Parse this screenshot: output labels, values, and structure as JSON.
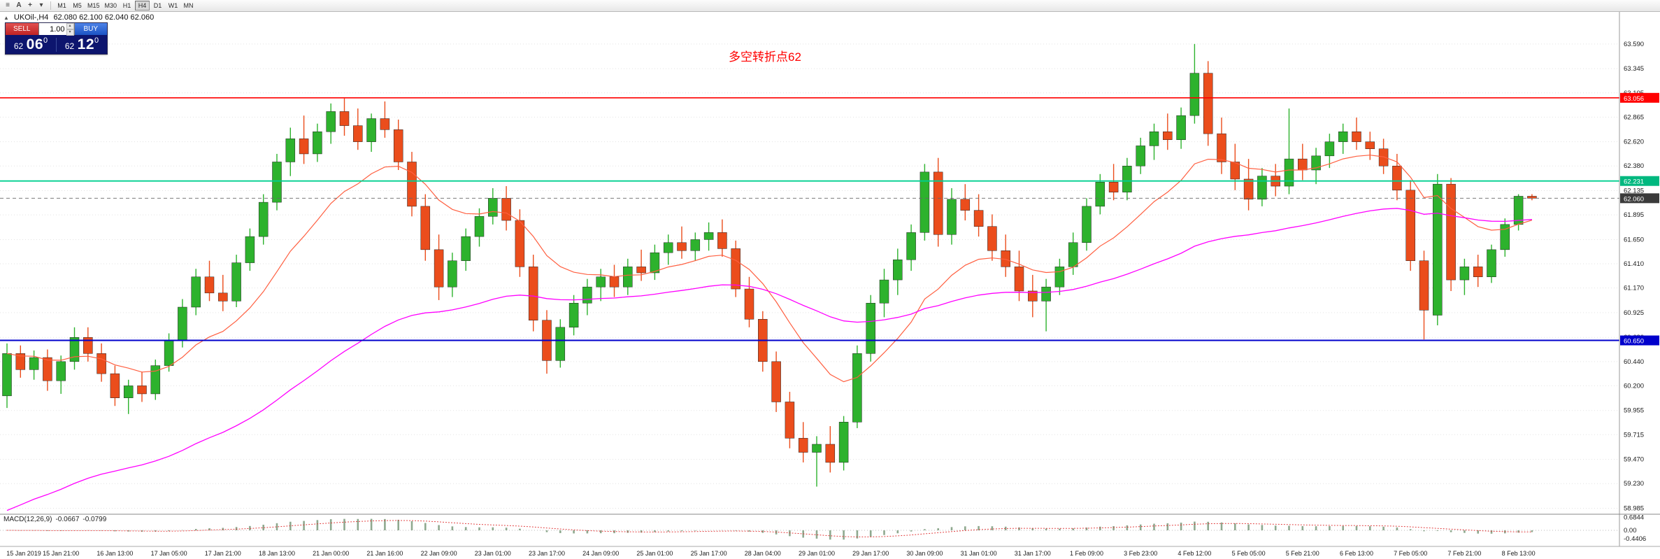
{
  "colors": {
    "up": "#2db22d",
    "down": "#eb4d1c",
    "candle_outline": "#222222",
    "ma_fast": "#ff5f40",
    "ma_slow": "#ff00ff",
    "hist": "#8fa98f",
    "signal": "#e03030",
    "grid": "#e3e3e3",
    "axis_border": "#999999",
    "annotation": "#ff0000"
  },
  "toolbar": {
    "icons": [
      {
        "name": "menu-icon",
        "glyph": "≡"
      },
      {
        "name": "text-tool-icon",
        "glyph": "A"
      },
      {
        "name": "crosshair-tool-icon",
        "glyph": "+"
      },
      {
        "name": "tools-dropdown-icon",
        "glyph": "▾"
      }
    ],
    "timeframes": [
      "M1",
      "M5",
      "M15",
      "M30",
      "H1",
      "H4",
      "D1",
      "W1",
      "MN"
    ],
    "active_timeframe": "H4"
  },
  "chart_header": {
    "toggle_glyph": "▲",
    "symbol": "UKOil-,H4",
    "ohlc": "62.080 62.100 62.040 62.060"
  },
  "trade_panel": {
    "sell_label": "SELL",
    "buy_label": "BUY",
    "lot_value": "1.00",
    "spin_up": "▴",
    "spin_down": "▾",
    "sell_price": {
      "int": "62",
      "pips": "06",
      "frac": "0"
    },
    "buy_price": {
      "int": "62",
      "pips": "12",
      "frac": "0"
    }
  },
  "annotation": {
    "text": "多空转折点62"
  },
  "macd": {
    "name": "MACD(12,26,9)",
    "value_main": "-0.0667",
    "value_signal": "-0.0799",
    "axis": [
      "0.6844",
      "0.00",
      "-0.4406"
    ]
  },
  "chart_data": {
    "type": "candlestick",
    "symbol": "UKOil-",
    "timeframe": "H4",
    "y_range": {
      "max": 63.7,
      "min": 58.94
    },
    "y_ticks": [
      63.59,
      63.345,
      63.105,
      62.865,
      62.62,
      62.38,
      62.135,
      61.895,
      61.65,
      61.41,
      61.17,
      60.925,
      60.68,
      60.44,
      60.2,
      59.955,
      59.715,
      59.47,
      59.23,
      58.985
    ],
    "x_labels": [
      "15 Jan 2019",
      "15 Jan 21:00",
      "16 Jan 13:00",
      "17 Jan 05:00",
      "17 Jan 21:00",
      "18 Jan 13:00",
      "21 Jan 00:00",
      "21 Jan 16:00",
      "22 Jan 09:00",
      "23 Jan 01:00",
      "23 Jan 17:00",
      "24 Jan 09:00",
      "25 Jan 01:00",
      "25 Jan 17:00",
      "28 Jan 04:00",
      "29 Jan 01:00",
      "29 Jan 17:00",
      "30 Jan 09:00",
      "31 Jan 01:00",
      "31 Jan 17:00",
      "1 Feb 09:00",
      "3 Feb 23:00",
      "4 Feb 12:00",
      "5 Feb 05:00",
      "5 Feb 21:00",
      "6 Feb 13:00",
      "7 Feb 05:00",
      "7 Feb 21:00",
      "8 Feb 13:00"
    ],
    "label_every": 4,
    "candles": [
      [
        60.1,
        60.62,
        59.98,
        60.52
      ],
      [
        60.52,
        60.6,
        60.28,
        60.36
      ],
      [
        60.36,
        60.55,
        60.26,
        60.48
      ],
      [
        60.48,
        60.56,
        60.15,
        60.25
      ],
      [
        60.25,
        60.5,
        60.12,
        60.44
      ],
      [
        60.44,
        60.78,
        60.36,
        60.68
      ],
      [
        60.68,
        60.78,
        60.44,
        60.52
      ],
      [
        60.52,
        60.62,
        60.24,
        60.32
      ],
      [
        60.32,
        60.4,
        60.0,
        60.08
      ],
      [
        60.08,
        60.26,
        59.92,
        60.2
      ],
      [
        60.2,
        60.34,
        60.04,
        60.12
      ],
      [
        60.12,
        60.46,
        60.06,
        60.4
      ],
      [
        60.4,
        60.72,
        60.34,
        60.65
      ],
      [
        60.65,
        61.06,
        60.58,
        60.98
      ],
      [
        60.98,
        61.36,
        60.9,
        61.28
      ],
      [
        61.28,
        61.44,
        61.04,
        61.12
      ],
      [
        61.12,
        61.3,
        60.94,
        61.04
      ],
      [
        61.04,
        61.5,
        60.98,
        61.42
      ],
      [
        61.42,
        61.76,
        61.34,
        61.68
      ],
      [
        61.68,
        62.1,
        61.6,
        62.02
      ],
      [
        62.02,
        62.5,
        61.94,
        62.42
      ],
      [
        62.42,
        62.76,
        62.28,
        62.65
      ],
      [
        62.65,
        62.88,
        62.4,
        62.5
      ],
      [
        62.5,
        62.8,
        62.42,
        62.72
      ],
      [
        62.72,
        63.0,
        62.6,
        62.92
      ],
      [
        62.92,
        63.05,
        62.68,
        62.78
      ],
      [
        62.78,
        62.95,
        62.54,
        62.62
      ],
      [
        62.62,
        62.9,
        62.52,
        62.85
      ],
      [
        62.85,
        63.02,
        62.66,
        62.74
      ],
      [
        62.74,
        62.84,
        62.34,
        62.42
      ],
      [
        62.42,
        62.52,
        61.88,
        61.98
      ],
      [
        61.98,
        62.1,
        61.44,
        61.55
      ],
      [
        61.55,
        61.7,
        61.05,
        61.18
      ],
      [
        61.18,
        61.52,
        61.08,
        61.44
      ],
      [
        61.44,
        61.76,
        61.34,
        61.68
      ],
      [
        61.68,
        61.96,
        61.58,
        61.88
      ],
      [
        61.88,
        62.16,
        61.8,
        62.06
      ],
      [
        62.06,
        62.18,
        61.74,
        61.84
      ],
      [
        61.84,
        61.95,
        61.28,
        61.38
      ],
      [
        61.38,
        61.5,
        60.74,
        60.85
      ],
      [
        60.85,
        60.95,
        60.32,
        60.45
      ],
      [
        60.45,
        60.86,
        60.38,
        60.78
      ],
      [
        60.78,
        61.1,
        60.7,
        61.02
      ],
      [
        61.02,
        61.26,
        60.9,
        61.18
      ],
      [
        61.18,
        61.36,
        61.04,
        61.28
      ],
      [
        61.28,
        61.4,
        61.08,
        61.18
      ],
      [
        61.18,
        61.46,
        61.1,
        61.38
      ],
      [
        61.38,
        61.55,
        61.24,
        61.32
      ],
      [
        61.32,
        61.6,
        61.25,
        61.52
      ],
      [
        61.52,
        61.7,
        61.4,
        61.62
      ],
      [
        61.62,
        61.78,
        61.46,
        61.54
      ],
      [
        61.54,
        61.72,
        61.44,
        61.65
      ],
      [
        61.65,
        61.82,
        61.54,
        61.72
      ],
      [
        61.72,
        61.85,
        61.48,
        61.56
      ],
      [
        61.56,
        61.64,
        61.08,
        61.16
      ],
      [
        61.16,
        61.28,
        60.78,
        60.86
      ],
      [
        60.86,
        60.94,
        60.34,
        60.44
      ],
      [
        60.44,
        60.54,
        59.94,
        60.04
      ],
      [
        60.04,
        60.14,
        59.58,
        59.68
      ],
      [
        59.68,
        59.84,
        59.44,
        59.54
      ],
      [
        59.54,
        59.7,
        59.2,
        59.62
      ],
      [
        59.62,
        59.8,
        59.34,
        59.44
      ],
      [
        59.44,
        59.9,
        59.36,
        59.84
      ],
      [
        59.84,
        60.6,
        59.78,
        60.52
      ],
      [
        60.52,
        61.1,
        60.44,
        61.02
      ],
      [
        61.02,
        61.36,
        60.88,
        61.25
      ],
      [
        61.25,
        61.56,
        61.1,
        61.45
      ],
      [
        61.45,
        61.8,
        61.34,
        61.72
      ],
      [
        61.72,
        62.4,
        61.64,
        62.32
      ],
      [
        62.32,
        62.46,
        61.58,
        61.7
      ],
      [
        61.7,
        62.16,
        61.6,
        62.05
      ],
      [
        62.05,
        62.2,
        61.84,
        61.94
      ],
      [
        61.94,
        62.1,
        61.68,
        61.78
      ],
      [
        61.78,
        61.9,
        61.44,
        61.54
      ],
      [
        61.54,
        61.7,
        61.28,
        61.38
      ],
      [
        61.38,
        61.54,
        61.04,
        61.14
      ],
      [
        61.14,
        61.3,
        60.88,
        61.04
      ],
      [
        61.04,
        61.26,
        60.74,
        61.18
      ],
      [
        61.18,
        61.46,
        61.1,
        61.38
      ],
      [
        61.38,
        61.72,
        61.3,
        61.62
      ],
      [
        61.62,
        62.06,
        61.54,
        61.98
      ],
      [
        61.98,
        62.3,
        61.9,
        62.22
      ],
      [
        62.22,
        62.4,
        62.04,
        62.12
      ],
      [
        62.12,
        62.46,
        62.04,
        62.38
      ],
      [
        62.38,
        62.66,
        62.3,
        62.58
      ],
      [
        62.58,
        62.8,
        62.44,
        62.72
      ],
      [
        62.72,
        62.9,
        62.54,
        62.64
      ],
      [
        62.64,
        62.96,
        62.55,
        62.88
      ],
      [
        62.88,
        63.59,
        62.8,
        63.3
      ],
      [
        63.3,
        63.42,
        62.58,
        62.7
      ],
      [
        62.7,
        62.86,
        62.3,
        62.42
      ],
      [
        62.42,
        62.6,
        62.14,
        62.25
      ],
      [
        62.25,
        62.45,
        61.94,
        62.05
      ],
      [
        62.05,
        62.36,
        61.98,
        62.28
      ],
      [
        62.28,
        62.4,
        62.08,
        62.18
      ],
      [
        62.18,
        62.95,
        62.1,
        62.45
      ],
      [
        62.45,
        62.6,
        62.24,
        62.34
      ],
      [
        62.34,
        62.56,
        62.2,
        62.48
      ],
      [
        62.48,
        62.7,
        62.36,
        62.62
      ],
      [
        62.62,
        62.8,
        62.5,
        62.72
      ],
      [
        62.72,
        62.86,
        62.54,
        62.62
      ],
      [
        62.62,
        62.72,
        62.44,
        62.55
      ],
      [
        62.55,
        62.65,
        62.3,
        62.38
      ],
      [
        62.38,
        62.5,
        62.04,
        62.14
      ],
      [
        62.14,
        62.24,
        61.34,
        61.44
      ],
      [
        61.44,
        61.54,
        60.66,
        60.95
      ],
      [
        60.9,
        62.3,
        60.8,
        62.2
      ],
      [
        62.2,
        62.26,
        61.14,
        61.25
      ],
      [
        61.25,
        61.46,
        61.1,
        61.38
      ],
      [
        61.38,
        61.5,
        61.18,
        61.28
      ],
      [
        61.28,
        61.6,
        61.22,
        61.55
      ],
      [
        61.55,
        61.86,
        61.48,
        61.8
      ],
      [
        61.8,
        62.1,
        61.74,
        62.08
      ],
      [
        62.08,
        62.1,
        62.04,
        62.06
      ]
    ],
    "levels": [
      {
        "name": "resistance-line-red",
        "price": 63.056,
        "label": "63.056",
        "color": "#ff0000",
        "tag_color": "#ff0000",
        "width": 1.6,
        "style": "solid"
      },
      {
        "name": "pivot-line-green",
        "price": 62.231,
        "label": "62.231",
        "color": "#00cf8f",
        "tag_color": "#00b87f",
        "width": 1.8,
        "style": "solid"
      },
      {
        "name": "current-price-line",
        "price": 62.06,
        "label": "62.060",
        "color": "#666666",
        "tag_color": "#3b3b3b",
        "width": 0.9,
        "style": "dash"
      },
      {
        "name": "support-line-blue",
        "price": 60.65,
        "label": "60.650",
        "color": "#0000cc",
        "tag_color": "#0000cc",
        "width": 2,
        "style": "solid"
      }
    ],
    "overlays": [
      {
        "name": "ma-fast",
        "type": "ema",
        "period": 12,
        "color": "#ff5f40",
        "width": 1.2
      },
      {
        "name": "ma-slow",
        "type": "ema",
        "period": 50,
        "seed": 58.9,
        "color": "#ff00ff",
        "width": 1.3
      }
    ],
    "indicator": {
      "name": "MACD",
      "fast": 12,
      "slow": 26,
      "signal": 9
    }
  }
}
